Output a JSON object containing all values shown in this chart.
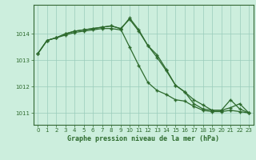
{
  "title": "Graphe pression niveau de la mer (hPa)",
  "bg_color": "#cceedd",
  "plot_bg_color": "#cceedd",
  "grid_color": "#99ccbb",
  "line_color": "#2d6a2d",
  "spine_color": "#336633",
  "xlim": [
    -0.5,
    23.5
  ],
  "ylim": [
    1010.55,
    1015.1
  ],
  "yticks": [
    1011,
    1012,
    1013,
    1014
  ],
  "xtick_labels": [
    "0",
    "1",
    "2",
    "3",
    "4",
    "5",
    "6",
    "7",
    "8",
    "9",
    "10",
    "11",
    "12",
    "13",
    "14",
    "15",
    "16",
    "17",
    "18",
    "19",
    "20",
    "21",
    "22",
    "23"
  ],
  "series": [
    [
      1013.25,
      1013.75,
      1013.85,
      1013.95,
      1014.05,
      1014.1,
      1014.15,
      1014.2,
      1014.2,
      1014.15,
      1014.6,
      1014.15,
      1013.55,
      1013.2,
      1012.65,
      1012.05,
      1011.8,
      1011.35,
      1011.15,
      1011.1,
      1011.1,
      1011.2,
      1011.35,
      1011.0
    ],
    [
      1013.25,
      1013.75,
      1013.85,
      1014.0,
      1014.1,
      1014.15,
      1014.2,
      1014.25,
      1014.3,
      1014.2,
      1013.5,
      1012.8,
      1012.15,
      1011.85,
      1011.7,
      1011.5,
      1011.45,
      1011.25,
      1011.1,
      1011.05,
      1011.05,
      1011.1,
      1011.05,
      1011.0
    ],
    [
      1013.25,
      1013.75,
      1013.85,
      1014.0,
      1014.1,
      1014.15,
      1014.2,
      1014.25,
      1014.3,
      1014.2,
      1014.55,
      1014.1,
      1013.55,
      1013.1,
      1012.6,
      1012.05,
      1011.8,
      1011.5,
      1011.3,
      1011.1,
      1011.1,
      1011.5,
      1011.15,
      1011.0
    ]
  ]
}
